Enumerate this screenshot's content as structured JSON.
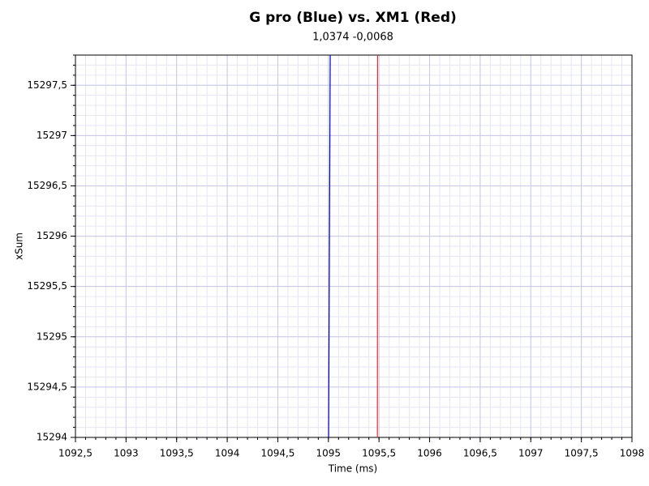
{
  "chart_data": {
    "type": "line",
    "title": "G pro (Blue) vs. XM1 (Red)",
    "subtitle": "1,0374 -0,0068",
    "x_label": "Time (ms)",
    "y_label": "xSum",
    "series": [
      {
        "color": "#0000c0",
        "x": [
          1095.002,
          1095.018
        ],
        "values": [
          15294,
          15297.8
        ]
      },
      {
        "color": "#e03030",
        "x": [
          1095.484,
          1095.486
        ],
        "values": [
          15294,
          15297.8
        ]
      }
    ],
    "xlim": [
      1092.5,
      1098
    ],
    "xticks": [
      {
        "value": 1092.5,
        "label": "1092,5"
      },
      1093,
      {
        "value": 1093.5,
        "label": "1093,5"
      },
      1094,
      {
        "value": 1094.5,
        "label": "1094,5"
      },
      1095,
      {
        "value": 1095.5,
        "label": "1095,5"
      },
      1096,
      {
        "value": 1096.5,
        "label": "1096,5"
      },
      1097,
      {
        "value": 1097.5,
        "label": "1097,5"
      },
      1098
    ],
    "ylim": [
      15294,
      15297.8
    ],
    "yticks": [
      15294,
      {
        "value": 15294.5,
        "label": "15294,5"
      },
      15295,
      {
        "value": 15295.5,
        "label": "15295,5"
      },
      15296,
      {
        "value": 15296.5,
        "label": "15296,5"
      },
      15297,
      {
        "value": 15297.5,
        "label": "15297,5"
      }
    ],
    "grid": true,
    "minor_divisions": 5
  }
}
